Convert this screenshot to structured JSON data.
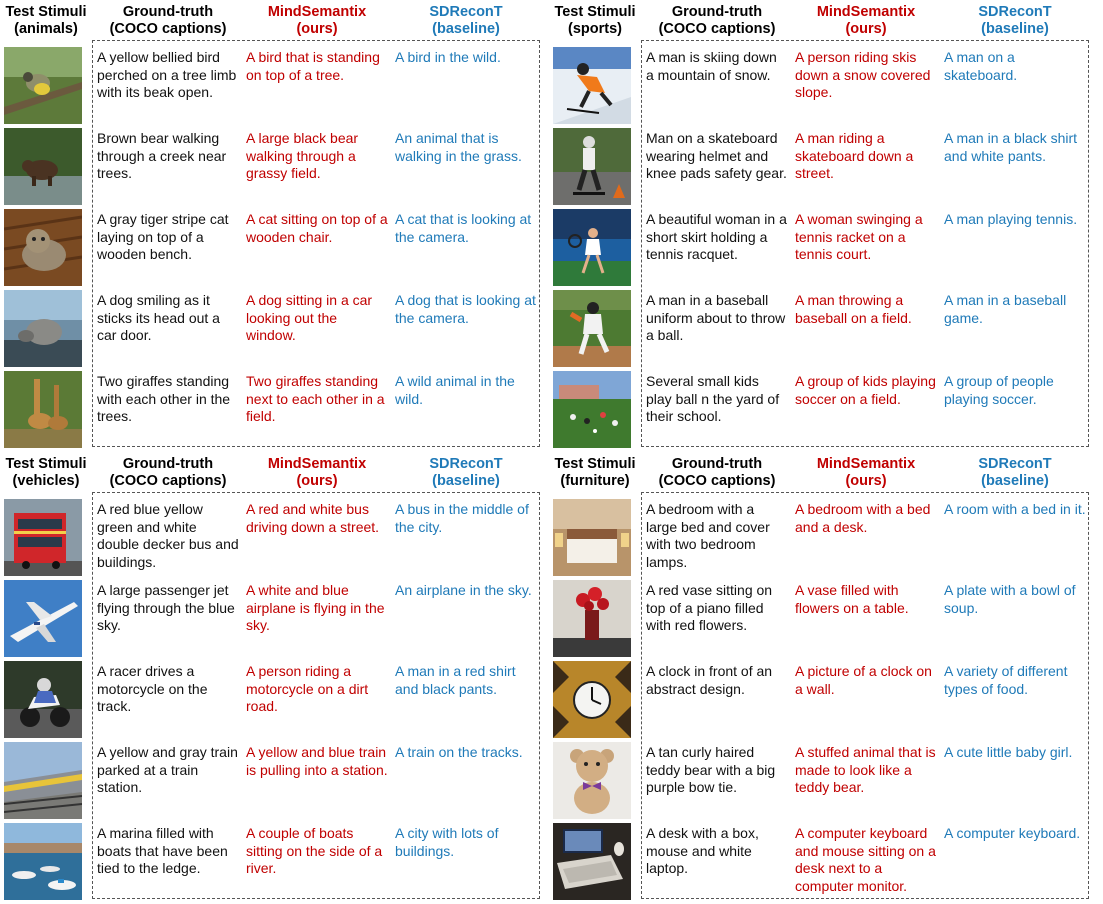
{
  "header": {
    "col_stimuli": "Test Stimuli",
    "col_gt": "Ground-truth",
    "col_gt_sub": "(COCO captions)",
    "col_ours": "MindSemantix",
    "col_ours_sub": "(ours)",
    "col_base": "SDReconT",
    "col_base_sub": "(baseline)"
  },
  "panels": [
    {
      "category": "(animals)",
      "rows": [
        {
          "thumb": "bird-thumbnail",
          "gt": "A yellow bellied bird perched on a tree limb with its beak open.",
          "ours": "A bird that is standing on top of a tree.",
          "base": "A bird in the wild."
        },
        {
          "thumb": "bear-thumbnail",
          "gt": "Brown bear walking through a creek near trees.",
          "ours": "A large black bear walking through a grassy field.",
          "base": "An animal that is walking in the grass."
        },
        {
          "thumb": "cat-thumbnail",
          "gt": "A gray tiger stripe cat laying on top of a wooden bench.",
          "ours": "A cat sitting on top of a wooden chair.",
          "base": "A cat that is looking at the camera."
        },
        {
          "thumb": "dog-thumbnail",
          "gt": "A dog smiling as it sticks its head out a car door.",
          "ours": "A dog sitting in a car looking out the window.",
          "base": "A dog that is looking at the camera."
        },
        {
          "thumb": "giraffe-thumbnail",
          "gt": "Two giraffes standing with each other in the trees.",
          "ours": "Two giraffes standing next to each other in a field.",
          "base": "A wild animal in the wild."
        }
      ]
    },
    {
      "category": "(sports)",
      "rows": [
        {
          "thumb": "skier-thumbnail",
          "gt": "A man is skiing down a mountain of snow.",
          "ours": "A person riding skis down a snow covered slope.",
          "base": "A man on a skateboard."
        },
        {
          "thumb": "skateboarder-thumbnail",
          "gt": "Man on a skateboard wearing helmet and knee pads safety gear.",
          "ours": "A man riding a skateboard down a street.",
          "base": "A man in a black shirt and white pants."
        },
        {
          "thumb": "tennis-thumbnail",
          "gt": "A beautiful woman in a short skirt holding a tennis racquet.",
          "ours": "A woman swinging a tennis racket on a tennis court.",
          "base": "A man playing tennis."
        },
        {
          "thumb": "baseball-thumbnail",
          "gt": "A man in a baseball uniform about to throw a ball.",
          "ours": "A man throwing a baseball on a field.",
          "base": "A man in a baseball game."
        },
        {
          "thumb": "soccer-thumbnail",
          "gt": "Several small kids play ball n the yard of their school.",
          "ours": "A group of kids playing soccer on a field.",
          "base": "A group of people playing soccer."
        }
      ]
    },
    {
      "category": "(vehicles)",
      "rows": [
        {
          "thumb": "bus-thumbnail",
          "gt": "A red blue yellow green and white double decker bus and buildings.",
          "ours": "A red and white bus driving down a street.",
          "base": "A bus in the middle of the city."
        },
        {
          "thumb": "airplane-thumbnail",
          "gt": "A large passenger jet flying through the blue sky.",
          "ours": "A white and blue airplane is flying in the sky.",
          "base": "An airplane in the sky."
        },
        {
          "thumb": "motorcycle-thumbnail",
          "gt": "A racer drives a motorcycle on the track.",
          "ours": "A person riding a motorcycle on a dirt road.",
          "base": "A man in a red shirt and black pants."
        },
        {
          "thumb": "train-thumbnail",
          "gt": "A yellow and gray train parked at a train station.",
          "ours": "A yellow and blue train is pulling into a station.",
          "base": "A train on the tracks."
        },
        {
          "thumb": "marina-thumbnail",
          "gt": "A marina filled with boats that have been tied to the ledge.",
          "ours": "A couple of boats sitting on the side of a river.",
          "base": "A city with lots of buildings."
        }
      ]
    },
    {
      "category": "(furniture)",
      "rows": [
        {
          "thumb": "bedroom-thumbnail",
          "gt": "A bedroom with a large bed and cover with two bedroom lamps.",
          "ours": "A bedroom with a bed and a desk.",
          "base": "A room with a bed in it."
        },
        {
          "thumb": "vase-thumbnail",
          "gt": "A red vase sitting on top of a piano filled with red flowers.",
          "ours": "A vase filled with flowers on a table.",
          "base": "A plate with a bowl of soup."
        },
        {
          "thumb": "clock-thumbnail",
          "gt": "A clock in front of an abstract design.",
          "ours": "A picture of a clock on a wall.",
          "base": "A variety of different types of food."
        },
        {
          "thumb": "teddy-bear-thumbnail",
          "gt": "A tan curly haired teddy bear with a big purple bow tie.",
          "ours": "A stuffed animal that is made to look like a teddy bear.",
          "base": "A cute little baby girl."
        },
        {
          "thumb": "desk-thumbnail",
          "gt": "A desk with a box, mouse and white laptop.",
          "ours": "A computer keyboard and mouse sitting on a desk next to a computer monitor.",
          "base": "A computer keyboard."
        }
      ]
    }
  ]
}
